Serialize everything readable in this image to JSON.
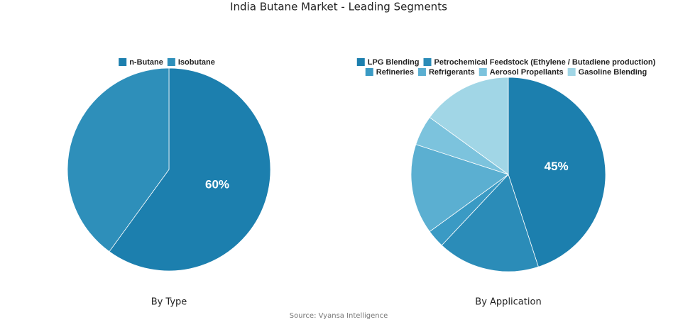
{
  "title": "India Butane Market - Leading Segments",
  "source": "Source: Vyansa Intelligence",
  "chart_data": [
    {
      "type": "pie",
      "title": "By Type",
      "categories": [
        "n-Butane",
        "Isobutane"
      ],
      "values": [
        60,
        40
      ],
      "value_labels": [
        "60%",
        null
      ],
      "colors": [
        "#1c7fae",
        "#2e8fba"
      ]
    },
    {
      "type": "pie",
      "title": "By Application",
      "categories": [
        "LPG Blending",
        "Petrochemical Feedstock (Ethylene / Butadiene production)",
        "Refineries",
        "Refrigerants",
        "Aerosol Propellants",
        "Gasoline Blending"
      ],
      "values": [
        45,
        17,
        3,
        15,
        5,
        15
      ],
      "value_labels": [
        "45%",
        null,
        null,
        null,
        null,
        null
      ],
      "colors": [
        "#1c7fae",
        "#2b8cb8",
        "#3a9ac4",
        "#5bafd1",
        "#7cc3dd",
        "#a1d6e6"
      ]
    }
  ]
}
